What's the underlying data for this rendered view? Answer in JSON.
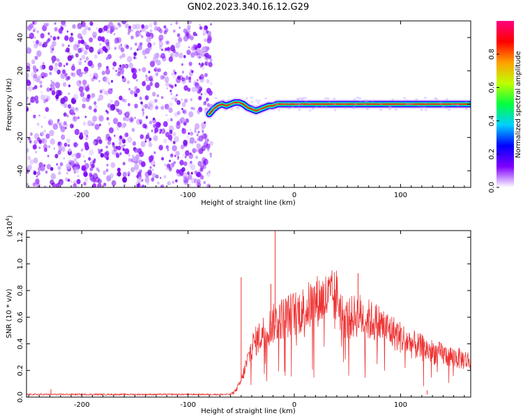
{
  "title": "GN02.2023.340.16.12.G29",
  "chart_data": [
    {
      "type": "heatmap",
      "xlabel": "Height of straight line (km)",
      "ylabel": "Frequency (Hz)",
      "xlim": [
        -252,
        166
      ],
      "ylim": [
        -50,
        50
      ],
      "x_ticks": [
        -200,
        -100,
        0,
        100
      ],
      "y_ticks": [
        -40,
        -20,
        0,
        20,
        40
      ],
      "x_tick_labels": [
        "-200",
        "-100",
        "0",
        "100"
      ],
      "y_tick_labels": [
        "-40",
        "-20",
        "0",
        "20",
        "40"
      ],
      "noise_region": {
        "x_range": [
          -252,
          -78
        ],
        "y_range": [
          -50,
          50
        ]
      },
      "signal_track": {
        "x": [
          -80,
          -76,
          -72,
          -68,
          -64,
          -60,
          -56,
          -52,
          -48,
          -44,
          -40,
          -36,
          -32,
          -28,
          -24,
          -20,
          -16,
          -12,
          -8,
          -4,
          0,
          20,
          40,
          60,
          80,
          100,
          120,
          140,
          166
        ],
        "y": [
          -6,
          -3,
          -1,
          0,
          -1,
          0,
          1,
          1,
          0,
          -2,
          -3,
          -4,
          -3,
          -2,
          -1,
          -1,
          0,
          0,
          0,
          0,
          0,
          0,
          0,
          0,
          0,
          0,
          0,
          0,
          0
        ]
      },
      "colorbar": {
        "label": "Normalized spectral amplitude",
        "range": [
          0.0,
          1.0
        ],
        "ticks": [
          0.0,
          0.2,
          0.4,
          0.6,
          0.8
        ],
        "tick_labels": [
          "0.0",
          "0.2",
          "0.4",
          "0.6",
          "0.8"
        ],
        "colors": [
          "#ffffff",
          "#7f00ff",
          "#0000ff",
          "#00d0ff",
          "#00ff40",
          "#c0ff00",
          "#ffa000",
          "#ff0000",
          "#ff0080"
        ]
      }
    },
    {
      "type": "line",
      "xlabel": "Height of straight line (km)",
      "ylabel": "SNR (10 * v/v)",
      "multiplier_label": "(x10",
      "multiplier_exponent": "4",
      "multiplier_close": ")",
      "xlim": [
        -252,
        166
      ],
      "ylim": [
        0,
        1.25
      ],
      "x_ticks": [
        -200,
        -100,
        0,
        100
      ],
      "y_ticks": [
        0.0,
        0.2,
        0.4,
        0.6,
        0.8,
        1.0,
        1.2
      ],
      "x_tick_labels": [
        "-200",
        "-100",
        "0",
        "100"
      ],
      "y_tick_labels": [
        "0.0",
        "0.2",
        "0.4",
        "0.6",
        "0.8",
        "1.0",
        "1.2"
      ],
      "line_color": "#ee3333",
      "envelope": {
        "x": [
          -252,
          -60,
          -55,
          -50,
          -45,
          -40,
          -30,
          -20,
          -10,
          0,
          10,
          20,
          30,
          40,
          45,
          50,
          60,
          70,
          80,
          90,
          100,
          110,
          120,
          130,
          140,
          150,
          166
        ],
        "y": [
          0.02,
          0.02,
          0.05,
          0.12,
          0.25,
          0.38,
          0.48,
          0.55,
          0.6,
          0.63,
          0.66,
          0.72,
          0.74,
          0.76,
          0.62,
          0.58,
          0.62,
          0.58,
          0.55,
          0.5,
          0.45,
          0.4,
          0.37,
          0.34,
          0.32,
          0.3,
          0.27
        ]
      },
      "spikes": [
        {
          "x": -229,
          "y": 0.06
        },
        {
          "x": -50,
          "y": 0.9
        },
        {
          "x": -18,
          "y": 1.25
        },
        {
          "x": -22,
          "y": 0.85
        },
        {
          "x": 60,
          "y": 0.93
        },
        {
          "x": 114,
          "y": 0.02
        },
        {
          "x": 125,
          "y": 0.05
        }
      ]
    }
  ]
}
